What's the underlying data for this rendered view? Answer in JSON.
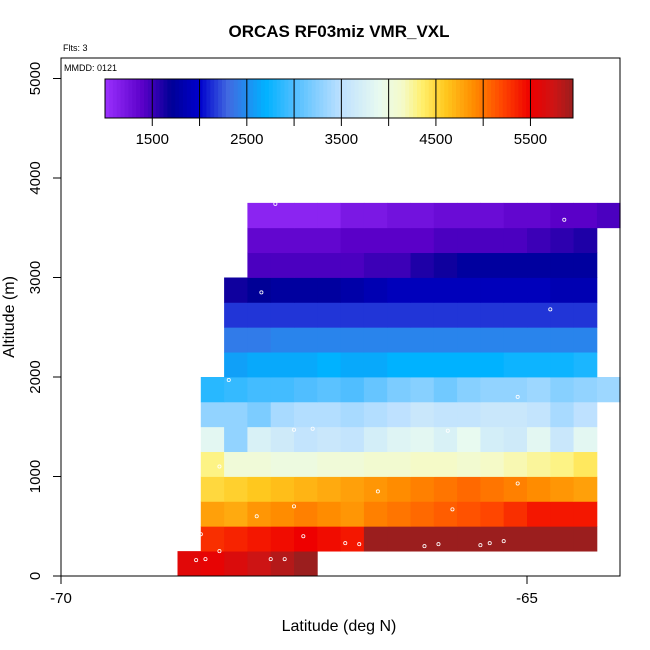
{
  "chart_data": {
    "type": "heatmap",
    "title": "ORCAS RF03miz VMR_VXL",
    "flights_note": "Flts: 3",
    "date_note": "MMDD: 0121",
    "xlabel": "Latitude (deg N)",
    "ylabel": "Altitude (m)",
    "xlim": [
      -70,
      -64.1
    ],
    "ylim": [
      0,
      5200
    ],
    "x_ticks": [
      -70,
      -65
    ],
    "x_tick_labels": [
      "-70",
      "-65"
    ],
    "y_ticks": [
      0,
      1000,
      2000,
      3000,
      4000,
      5000
    ],
    "y_tick_labels": [
      "0",
      "1000",
      "2000",
      "3000",
      "4000",
      "5000"
    ],
    "colorbar": {
      "range": [
        1000,
        5950
      ],
      "ticks": [
        1500,
        2500,
        3500,
        4500,
        5500
      ],
      "tick_labels": [
        "1500",
        "2500",
        "3500",
        "4500",
        "5500"
      ],
      "segment_boundaries": [
        1500,
        2000,
        2500,
        3000,
        3500,
        4000,
        4500,
        5000,
        5500
      ]
    },
    "grid": {
      "x_start": -68.5,
      "cell_width": 0.25,
      "row_height": 250
    },
    "rows": [
      {
        "alt_min": 0,
        "alt_max": 250,
        "x_start": -68.75,
        "values": [
          5600,
          5550,
          5650,
          5750,
          5850,
          5950
        ]
      },
      {
        "alt_min": 250,
        "alt_max": 500,
        "x_start": -68.5,
        "values": [
          5300,
          5350,
          5400,
          5450,
          5500,
          5450,
          5400,
          5950,
          5950,
          5950,
          5950,
          5950,
          5950,
          5950,
          5950,
          5950,
          5950
        ]
      },
      {
        "alt_min": 500,
        "alt_max": 750,
        "x_start": -68.5,
        "values": [
          4800,
          4750,
          4850,
          4900,
          4950,
          4900,
          4850,
          4950,
          5000,
          5050,
          5100,
          5150,
          5200,
          5300,
          5400,
          5400,
          5400
        ]
      },
      {
        "alt_min": 750,
        "alt_max": 1000,
        "x_start": -68.5,
        "values": [
          4500,
          4550,
          4600,
          4650,
          4700,
          4750,
          4800,
          4850,
          4900,
          4950,
          5000,
          5050,
          5000,
          4950,
          4900,
          4850,
          4800
        ]
      },
      {
        "alt_min": 1000,
        "alt_max": 1250,
        "x_start": -68.5,
        "values": [
          4300,
          4050,
          4050,
          4000,
          4000,
          4050,
          4050,
          4100,
          4100,
          4150,
          4150,
          4100,
          4150,
          4200,
          4250,
          4300,
          4400
        ]
      },
      {
        "alt_min": 1250,
        "alt_max": 1500,
        "x_start": -68.5,
        "values": [
          3850,
          3300,
          3750,
          3650,
          3550,
          3600,
          3550,
          3700,
          3800,
          3850,
          3750,
          3900,
          3700,
          3650,
          3850,
          3600,
          3850
        ]
      },
      {
        "alt_min": 1500,
        "alt_max": 1750,
        "x_start": -68.5,
        "values": [
          3300,
          3300,
          3200,
          3400,
          3450,
          3450,
          3400,
          3450,
          3500,
          3600,
          3550,
          3550,
          3600,
          3600,
          3550,
          3400,
          3500
        ]
      },
      {
        "alt_min": 1750,
        "alt_max": 2000,
        "x_start": -68.5,
        "values": [
          2850,
          2900,
          2950,
          2950,
          3000,
          3050,
          3000,
          3100,
          3200,
          3250,
          3150,
          3250,
          3300,
          3300,
          3350,
          3250,
          3300,
          3350
        ]
      },
      {
        "alt_min": 2000,
        "alt_max": 2250,
        "x_start": -68.25,
        "values": [
          2600,
          2650,
          2650,
          2650,
          2700,
          2650,
          2650,
          2700,
          2700,
          2700,
          2700,
          2700,
          2750,
          2750,
          2750,
          2800
        ]
      },
      {
        "alt_min": 2250,
        "alt_max": 2500,
        "x_start": -68.25,
        "values": [
          2400,
          2400,
          2450,
          2450,
          2450,
          2450,
          2450,
          2450,
          2450,
          2450,
          2450,
          2450,
          2450,
          2450,
          2450,
          2450
        ]
      },
      {
        "alt_min": 2500,
        "alt_max": 2750,
        "x_start": -68.25,
        "values": [
          2150,
          2150,
          2150,
          2150,
          2150,
          2150,
          2150,
          2150,
          2150,
          2150,
          2150,
          2150,
          2150,
          2150,
          2150,
          2150
        ]
      },
      {
        "alt_min": 2750,
        "alt_max": 3000,
        "x_start": -68.25,
        "values": [
          1650,
          1700,
          1750,
          1750,
          1750,
          1800,
          1850,
          1900,
          1900,
          1900,
          1900,
          1900,
          1900,
          1900,
          1850,
          1850
        ]
      },
      {
        "alt_min": 3000,
        "alt_max": 3250,
        "x_start": -68.0,
        "values": [
          1450,
          1450,
          1450,
          1450,
          1450,
          1500,
          1500,
          1600,
          1650,
          1750,
          1750,
          1750,
          1750,
          1750,
          1750
        ]
      },
      {
        "alt_min": 3250,
        "alt_max": 3500,
        "x_start": -68.0,
        "values": [
          1350,
          1350,
          1350,
          1350,
          1400,
          1400,
          1400,
          1400,
          1450,
          1450,
          1450,
          1450,
          1500,
          1550,
          1600
        ]
      },
      {
        "alt_min": 3500,
        "alt_max": 3750,
        "x_start": -68.0,
        "values": [
          1100,
          1100,
          1100,
          1100,
          1200,
          1200,
          1250,
          1250,
          1300,
          1300,
          1300,
          1350,
          1350,
          1400,
          1400,
          1450
        ]
      }
    ],
    "points": [
      {
        "lat": -68.55,
        "alt": 160
      },
      {
        "lat": -68.45,
        "alt": 170
      },
      {
        "lat": -68.3,
        "alt": 250
      },
      {
        "lat": -67.75,
        "alt": 170
      },
      {
        "lat": -67.6,
        "alt": 170
      },
      {
        "lat": -68.5,
        "alt": 420
      },
      {
        "lat": -67.4,
        "alt": 400
      },
      {
        "lat": -67.5,
        "alt": 700
      },
      {
        "lat": -67.9,
        "alt": 600
      },
      {
        "lat": -66.95,
        "alt": 330
      },
      {
        "lat": -66.8,
        "alt": 320
      },
      {
        "lat": -66.6,
        "alt": 850
      },
      {
        "lat": -66.1,
        "alt": 300
      },
      {
        "lat": -65.95,
        "alt": 320
      },
      {
        "lat": -65.8,
        "alt": 670
      },
      {
        "lat": -65.5,
        "alt": 310
      },
      {
        "lat": -65.4,
        "alt": 330
      },
      {
        "lat": -65.25,
        "alt": 350
      },
      {
        "lat": -65.1,
        "alt": 930
      },
      {
        "lat": -68.3,
        "alt": 1100
      },
      {
        "lat": -67.5,
        "alt": 1470
      },
      {
        "lat": -67.3,
        "alt": 1480
      },
      {
        "lat": -65.85,
        "alt": 1460
      },
      {
        "lat": -68.2,
        "alt": 1970
      },
      {
        "lat": -65.1,
        "alt": 1800
      },
      {
        "lat": -67.85,
        "alt": 2850
      },
      {
        "lat": -64.75,
        "alt": 2680
      },
      {
        "lat": -67.7,
        "alt": 3740
      },
      {
        "lat": -64.6,
        "alt": 3580
      }
    ]
  }
}
